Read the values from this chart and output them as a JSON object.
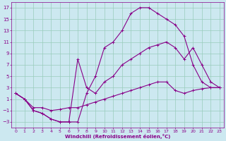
{
  "xlabel": "Windchill (Refroidissement éolien,°C)",
  "bg_color": "#cce8f0",
  "line_color": "#880088",
  "grid_color": "#99ccbb",
  "xlim": [
    -0.5,
    23.5
  ],
  "ylim": [
    -4,
    18
  ],
  "xticks": [
    0,
    1,
    2,
    3,
    4,
    5,
    6,
    7,
    8,
    9,
    10,
    11,
    12,
    13,
    14,
    15,
    16,
    17,
    18,
    19,
    20,
    21,
    22,
    23
  ],
  "yticks": [
    -3,
    -1,
    1,
    3,
    5,
    7,
    9,
    11,
    13,
    15,
    17
  ],
  "lines": [
    {
      "x": [
        0,
        1,
        2,
        3,
        4,
        5,
        6,
        7,
        8,
        9,
        10,
        11,
        12,
        13,
        14,
        15,
        16,
        17,
        18,
        19,
        20,
        21,
        22,
        23
      ],
      "y": [
        2,
        1,
        -1,
        -1.5,
        -2.5,
        -3,
        -3,
        -3,
        2,
        5,
        10,
        11,
        13,
        16,
        17,
        17,
        16,
        15,
        14,
        12,
        7,
        4,
        3,
        3
      ]
    },
    {
      "x": [
        0,
        1,
        2,
        3,
        4,
        5,
        6,
        7,
        8,
        9,
        10,
        11,
        12,
        13,
        14,
        15,
        16,
        17,
        18,
        19,
        20,
        21,
        22,
        23
      ],
      "y": [
        2,
        1,
        -1,
        -1.5,
        -2.5,
        -3,
        -3,
        8,
        3,
        2,
        4,
        5,
        7,
        8,
        9,
        10,
        10.5,
        11,
        10,
        8,
        10,
        7,
        4,
        3
      ]
    },
    {
      "x": [
        0,
        1,
        2,
        3,
        4,
        5,
        6,
        7,
        8,
        9,
        10,
        11,
        12,
        13,
        14,
        15,
        16,
        17,
        18,
        19,
        20,
        21,
        22,
        23
      ],
      "y": [
        2,
        1,
        -0.5,
        -0.5,
        -1,
        -0.8,
        -0.5,
        -0.5,
        0,
        0.5,
        1,
        1.5,
        2,
        2.5,
        3,
        3.5,
        4,
        4,
        2.5,
        2,
        2.5,
        2.8,
        3,
        3
      ]
    }
  ]
}
